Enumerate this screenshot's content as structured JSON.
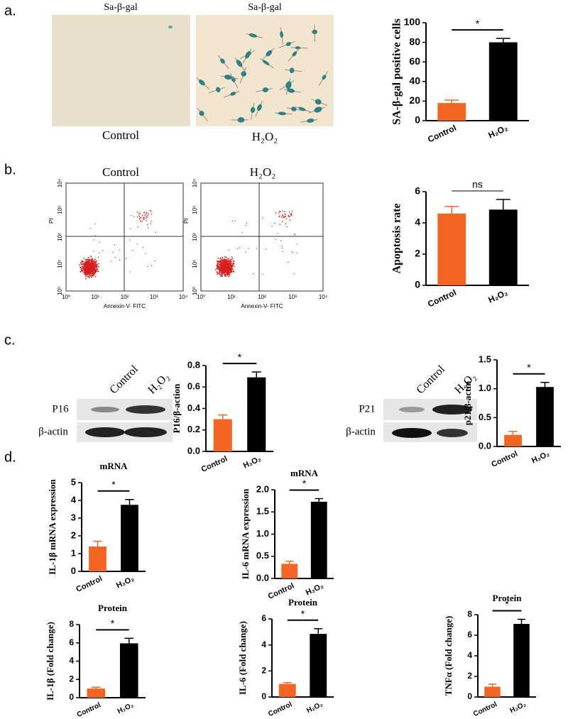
{
  "panel_labels": [
    "a.",
    "b.",
    "c.",
    "d."
  ],
  "microscopy": {
    "images": [
      {
        "title": "Sa-β-gal",
        "label": "Control"
      },
      {
        "title": "Sa-β-gal",
        "label": "H₂O₂"
      }
    ]
  },
  "flow_cytometry": {
    "panels": [
      {
        "title": "Control"
      },
      {
        "title": "H₂O₂"
      }
    ],
    "xlabel": "Annexin-V- FITC",
    "ylabel": "PI",
    "ticks": [
      "10⁰",
      "10¹",
      "10²",
      "10³",
      "10⁴"
    ]
  },
  "western_blots": [
    {
      "lanes": [
        "Control",
        "H₂O₂"
      ],
      "rows": [
        "P16",
        "β-actin"
      ]
    },
    {
      "lanes": [
        "Control",
        "H₂O₂"
      ],
      "rows": [
        "P21",
        "β-actin"
      ]
    }
  ],
  "chart_data": [
    {
      "type": "bar",
      "ylabel": "SA-β-gal positive cells",
      "categories": [
        "Control",
        "H₂O₂"
      ],
      "values": [
        18,
        80
      ],
      "errors": [
        3,
        4
      ],
      "colors": [
        "#f26522",
        "#000000"
      ],
      "ylim": [
        0,
        100
      ],
      "yticks": [
        0,
        20,
        40,
        60,
        80,
        100
      ],
      "significance": "*"
    },
    {
      "type": "bar",
      "ylabel": "Apoptosis rate",
      "categories": [
        "Control",
        "H₂O₂"
      ],
      "values": [
        4.6,
        4.85
      ],
      "errors": [
        0.45,
        0.65
      ],
      "colors": [
        "#f26522",
        "#000000"
      ],
      "ylim": [
        0,
        6
      ],
      "yticks": [
        0,
        2,
        4,
        6
      ],
      "significance": "ns"
    },
    {
      "type": "bar",
      "ylabel": "P16/β-action",
      "categories": [
        "Control",
        "H₂O₂"
      ],
      "values": [
        0.3,
        0.69
      ],
      "errors": [
        0.04,
        0.05
      ],
      "colors": [
        "#f26522",
        "#000000"
      ],
      "ylim": [
        0,
        0.8
      ],
      "yticks": [
        {
          "value": 0,
          "label": "0.0"
        },
        0.2,
        0.4,
        0.6,
        0.8
      ],
      "significance": "*"
    },
    {
      "type": "bar",
      "ylabel": "p21/β-actin",
      "categories": [
        "Control",
        "H₂O₂"
      ],
      "values": [
        0.2,
        1.03
      ],
      "errors": [
        0.06,
        0.08
      ],
      "colors": [
        "#f26522",
        "#000000"
      ],
      "ylim": [
        0,
        1.5
      ],
      "yticks": [
        {
          "value": 0,
          "label": "0.0"
        },
        0.5,
        {
          "value": 1,
          "label": "1.0"
        },
        1.5
      ],
      "significance": "*"
    },
    {
      "type": "bar",
      "title": "mRNA",
      "ylabel": "IL-1β mRNA expression",
      "categories": [
        "Control",
        "H₂O₂"
      ],
      "values": [
        1.4,
        3.75
      ],
      "errors": [
        0.3,
        0.3
      ],
      "colors": [
        "#f26522",
        "#000000"
      ],
      "ylim": [
        0,
        5
      ],
      "yticks": [
        0,
        1,
        2,
        3,
        4,
        5
      ],
      "significance": "*"
    },
    {
      "type": "bar",
      "title": "mRNA",
      "ylabel": "IL-6 mRNA expression",
      "categories": [
        "Control",
        "H₂O₂"
      ],
      "values": [
        0.33,
        1.73
      ],
      "errors": [
        0.06,
        0.07
      ],
      "colors": [
        "#f26522",
        "#000000"
      ],
      "ylim": [
        0,
        2
      ],
      "yticks": [
        {
          "value": 0,
          "label": "0.0"
        },
        0.5,
        {
          "value": 1,
          "label": "1.0"
        },
        1.5,
        {
          "value": 2,
          "label": "2.0"
        }
      ],
      "significance": "*"
    },
    {
      "type": "bar",
      "title": "Protein",
      "ylabel": "IL-1β (Fold change)",
      "categories": [
        "Control",
        "H₂O₂"
      ],
      "values": [
        1.0,
        5.95
      ],
      "errors": [
        0.15,
        0.55
      ],
      "colors": [
        "#f26522",
        "#000000"
      ],
      "ylim": [
        0,
        8
      ],
      "yticks": [
        0,
        2,
        4,
        6,
        8
      ],
      "significance": "*"
    },
    {
      "type": "bar",
      "title": "Protein",
      "ylabel": "IL-6 (Fold change)",
      "categories": [
        "Control",
        "H₂O₂"
      ],
      "values": [
        1.0,
        4.85
      ],
      "errors": [
        0.1,
        0.4
      ],
      "colors": [
        "#f26522",
        "#000000"
      ],
      "ylim": [
        0,
        6
      ],
      "yticks": [
        0,
        2,
        4,
        6
      ],
      "significance": "*"
    },
    {
      "type": "bar",
      "title": "Protein",
      "ylabel": "TNFα (Fold change)",
      "categories": [
        "Control",
        "H₂O₂"
      ],
      "values": [
        1.0,
        7.1
      ],
      "errors": [
        0.25,
        0.45
      ],
      "colors": [
        "#f26522",
        "#000000"
      ],
      "ylim": [
        0,
        8
      ],
      "yticks": [
        0,
        2,
        4,
        6,
        8
      ],
      "significance": "*"
    }
  ]
}
